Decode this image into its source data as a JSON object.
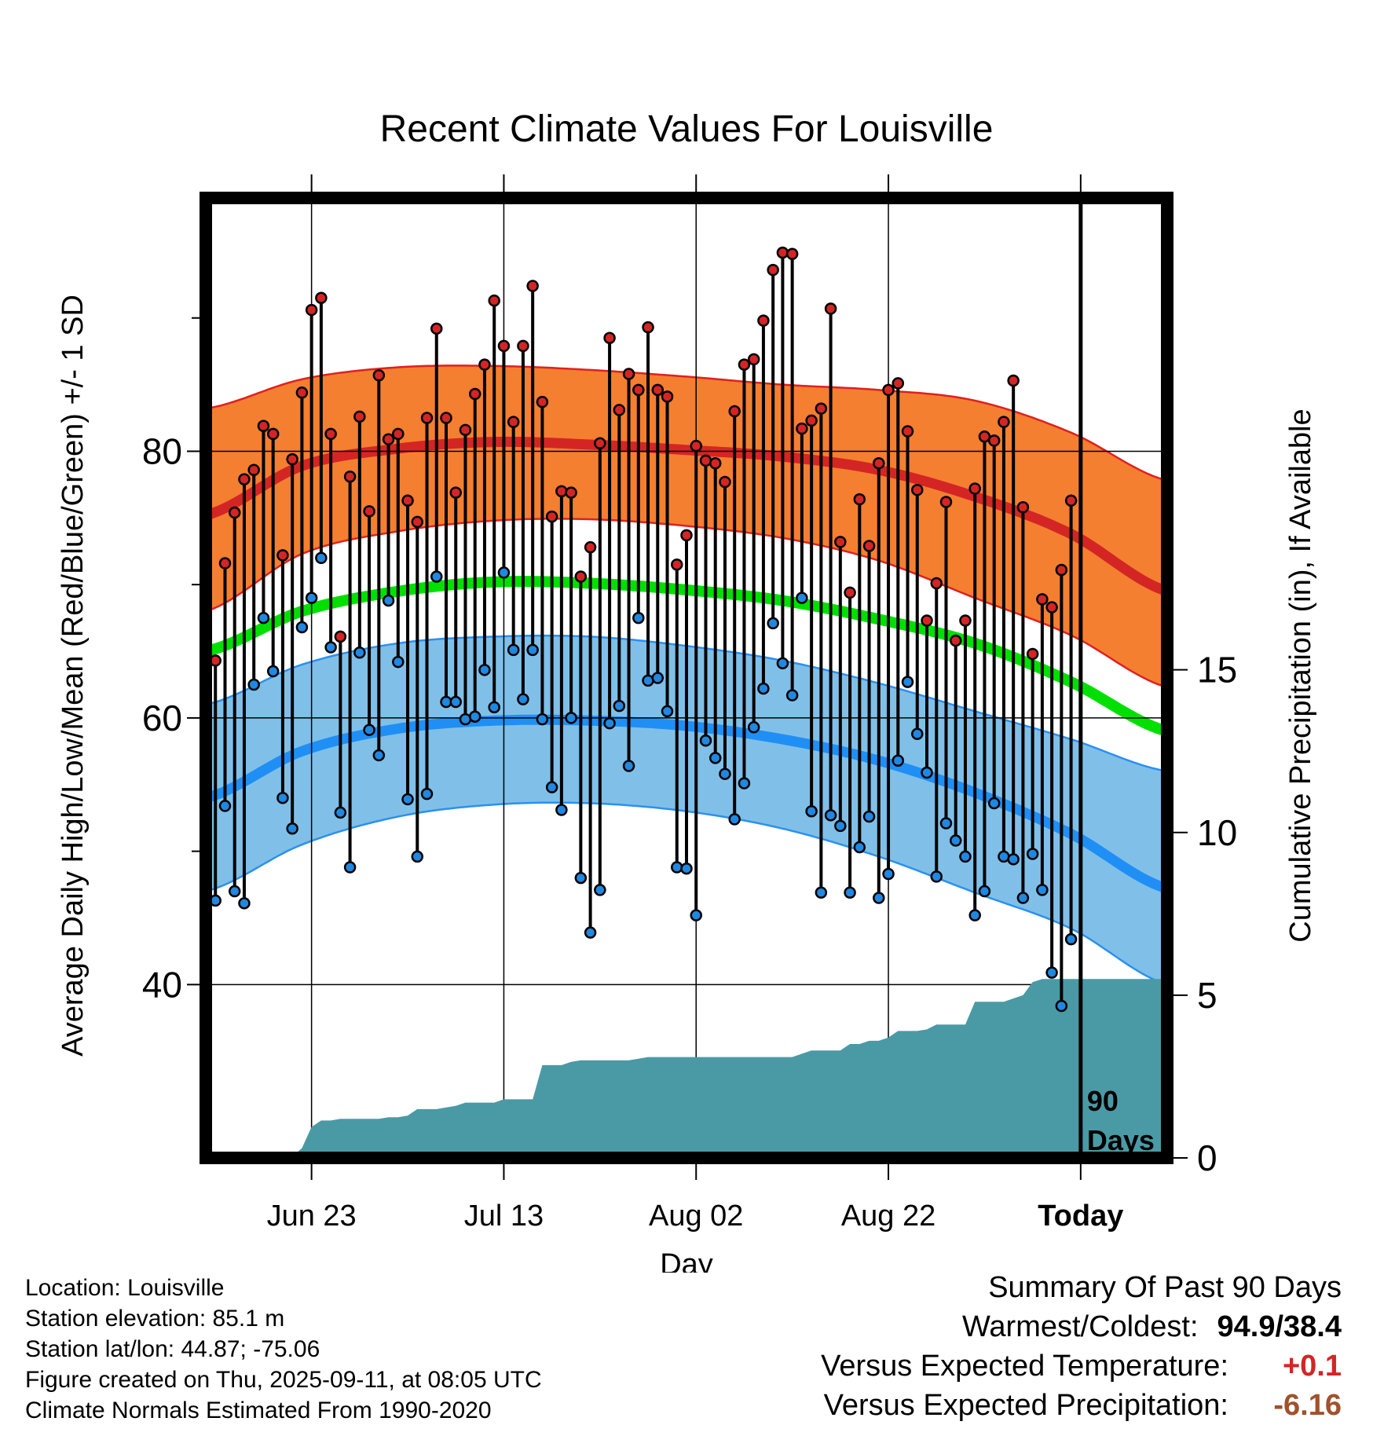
{
  "chart_data": {
    "type": "line",
    "title": "Recent Climate Values For Louisville",
    "xlabel": "Day",
    "ylabel": "Average Daily High/Low/Mean (Red/Blue/Green) +/- 1 SD",
    "y2label": "Cumulative Precipitation (in), If Available",
    "ylim": [
      27,
      99
    ],
    "y_ticks": [
      "40",
      "60",
      "80"
    ],
    "y2lim": [
      0,
      29.5
    ],
    "y2_ticks": [
      "0",
      "5",
      "10",
      "15"
    ],
    "x_tick_labels": [
      "Jun 23",
      "Jul 13",
      "Aug 02",
      "Aug 22",
      "Today"
    ],
    "x_tick_days": [
      10,
      30,
      50,
      70,
      90
    ],
    "xlim": [
      -1,
      99
    ],
    "today_label": "90\nDays",
    "normals": {
      "days": [
        -1,
        9,
        19,
        29,
        39,
        49,
        59,
        69,
        79,
        89,
        99
      ],
      "high_mean": [
        75.2,
        78.9,
        80.2,
        80.7,
        80.5,
        80.1,
        79.6,
        78.6,
        76.6,
        73.8,
        69.5
      ],
      "high_plus_sd": [
        83.2,
        85.4,
        86.3,
        86.4,
        86.1,
        85.6,
        85.0,
        84.6,
        83.8,
        81.4,
        77.8
      ],
      "high_minus_sd": [
        68.0,
        72.3,
        74.0,
        74.8,
        74.9,
        74.4,
        73.5,
        71.8,
        69.0,
        66.2,
        62.3
      ],
      "mean": [
        65.0,
        68.0,
        69.5,
        70.2,
        70.1,
        69.6,
        68.8,
        67.4,
        65.6,
        62.7,
        59.0
      ],
      "low_mean": [
        54.0,
        57.5,
        59.2,
        59.8,
        59.8,
        59.4,
        58.4,
        56.8,
        54.4,
        51.3,
        47.2
      ],
      "low_plus_sd": [
        61.0,
        64.0,
        65.6,
        66.1,
        66.1,
        65.4,
        64.3,
        62.6,
        60.5,
        58.4,
        56.0
      ],
      "low_minus_sd": [
        47.0,
        50.5,
        52.6,
        53.5,
        53.6,
        53.0,
        51.7,
        49.6,
        46.9,
        44.2,
        40.0
      ]
    },
    "series": [
      {
        "name": "High",
        "color": "#e41a1c",
        "values": [
          64.3,
          71.6,
          75.4,
          77.9,
          78.6,
          81.9,
          81.3,
          72.2,
          79.4,
          84.4,
          90.6,
          91.5,
          81.3,
          66.1,
          78.1,
          82.6,
          75.5,
          85.7,
          80.9,
          81.3,
          76.3,
          74.7,
          82.5,
          89.2,
          82.5,
          76.9,
          81.6,
          84.3,
          86.5,
          91.3,
          87.9,
          82.2,
          87.9,
          92.4,
          83.7,
          75.1,
          77.0,
          76.9,
          70.6,
          72.8,
          80.6,
          88.5,
          83.1,
          85.8,
          84.6,
          89.3,
          84.6,
          84.1,
          71.5,
          73.7,
          80.4,
          79.3,
          79.1,
          77.7,
          83.0,
          86.5,
          86.9,
          89.8,
          93.6,
          94.9,
          94.8,
          81.7,
          82.3,
          83.2,
          90.7,
          73.2,
          69.4,
          76.4,
          72.9,
          79.1,
          84.6,
          85.1,
          81.5,
          77.1,
          67.3,
          70.1,
          76.2,
          65.8,
          67.3,
          77.2,
          81.1,
          80.8,
          82.2,
          85.3,
          75.8,
          64.8,
          68.9,
          68.3,
          71.1,
          76.3
        ]
      },
      {
        "name": "Low",
        "color": "#1f78d1",
        "values": [
          46.3,
          53.4,
          47.0,
          46.1,
          62.5,
          67.5,
          63.5,
          54.0,
          51.7,
          66.8,
          69.0,
          72.0,
          65.3,
          52.9,
          48.8,
          64.9,
          59.1,
          57.2,
          68.8,
          64.2,
          53.9,
          49.6,
          54.3,
          70.6,
          61.2,
          61.2,
          59.9,
          60.1,
          63.6,
          60.8,
          70.9,
          65.1,
          61.4,
          65.1,
          59.9,
          54.8,
          53.1,
          60.0,
          48.0,
          43.9,
          47.1,
          59.6,
          60.9,
          56.4,
          67.5,
          62.8,
          63.0,
          60.5,
          48.8,
          48.7,
          45.2,
          58.3,
          57.0,
          55.8,
          52.4,
          55.1,
          59.3,
          62.2,
          67.1,
          64.1,
          61.7,
          69.0,
          53.0,
          46.9,
          52.7,
          51.9,
          46.9,
          50.3,
          52.6,
          46.5,
          48.3,
          56.8,
          62.7,
          58.8,
          55.9,
          48.1,
          52.1,
          50.8,
          49.6,
          45.2,
          47.0,
          53.6,
          49.6,
          49.4,
          46.5,
          49.8,
          47.1,
          40.9,
          38.4,
          43.4
        ]
      }
    ],
    "precip_cumulative": [
      0,
      0,
      0,
      0,
      0,
      0,
      0,
      0,
      0.05,
      0.3,
      0.95,
      1.15,
      1.15,
      1.2,
      1.2,
      1.2,
      1.2,
      1.2,
      1.25,
      1.25,
      1.3,
      1.5,
      1.5,
      1.5,
      1.55,
      1.6,
      1.7,
      1.7,
      1.7,
      1.7,
      1.8,
      1.8,
      1.8,
      1.8,
      2.85,
      2.85,
      2.85,
      2.95,
      3.0,
      3.0,
      3.0,
      3.0,
      3.0,
      3.0,
      3.05,
      3.1,
      3.1,
      3.1,
      3.1,
      3.1,
      3.1,
      3.1,
      3.1,
      3.1,
      3.1,
      3.1,
      3.1,
      3.1,
      3.1,
      3.1,
      3.1,
      3.2,
      3.3,
      3.3,
      3.3,
      3.3,
      3.5,
      3.5,
      3.6,
      3.6,
      3.7,
      3.9,
      3.9,
      3.9,
      3.95,
      4.1,
      4.1,
      4.1,
      4.1,
      4.8,
      4.8,
      4.8,
      4.8,
      4.9,
      5.0,
      5.4,
      5.5,
      5.5,
      5.5,
      5.5,
      5.5
    ],
    "colors": {
      "high_band": "#f47f30",
      "high_line": "#d42525",
      "mean_line": "#00e000",
      "low_band": "#80c0e8",
      "low_line": "#1f8ff5",
      "low_band_edge": "#2b90f0",
      "high_band_edge": "#e02020",
      "precip_fill": "#4a9aa5",
      "high_dot": "#d42525",
      "low_dot": "#2088e0"
    }
  },
  "footer": {
    "location": "Location: Louisville",
    "elevation": "Station elevation: 85.1 m",
    "latlon": "Station lat/lon: 44.87; -75.06",
    "created": "Figure created on Thu, 2025-09-11, at 08:05 UTC",
    "normals": "Climate Normals Estimated From 1990-2020"
  },
  "summary": {
    "title": "Summary Of Past 90 Days",
    "warm_cold_label": "Warmest/Coldest:",
    "warm_cold_value": "94.9/38.4",
    "temp_label": "Versus Expected Temperature:",
    "temp_value": "+0.1",
    "temp_color": "#d42525",
    "precip_label": "Versus Expected Precipitation:",
    "precip_value": "-6.16",
    "precip_color": "#a0522d"
  }
}
